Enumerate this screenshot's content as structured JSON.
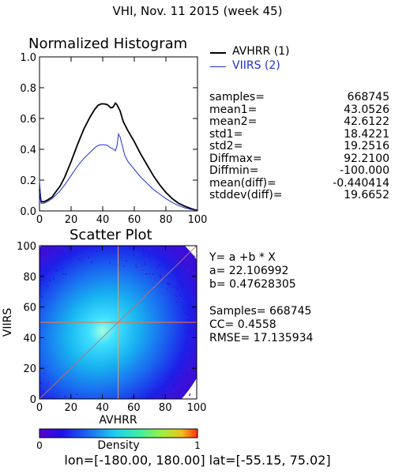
{
  "header": {
    "title": "VHI,  Nov. 11 2015 (week 45)"
  },
  "colors": {
    "avhrr": "#000000",
    "viirs": "#1f2fd0",
    "reference_line": "#c07070"
  },
  "chart_data": [
    {
      "type": "line",
      "title": "Normalized Histogram",
      "xlabel": "",
      "ylabel": "",
      "xlim": [
        0,
        100
      ],
      "ylim": [
        0,
        1.0
      ],
      "x_ticks": [
        "0",
        "20",
        "40",
        "60",
        "80",
        "100"
      ],
      "y_ticks": [
        "0.0",
        "0.2",
        "0.4",
        "0.6",
        "0.8",
        "1.0"
      ],
      "grid": false,
      "legend": "top-right",
      "series": [
        {
          "name": "AVHRR (1)",
          "color": "#000000",
          "x": [
            0,
            1,
            3,
            5,
            8,
            10,
            13,
            16,
            20,
            24,
            28,
            32,
            35,
            37,
            39,
            41,
            43,
            45,
            46,
            47,
            48,
            49,
            50,
            51,
            53,
            56,
            60,
            64,
            68,
            72,
            76,
            80,
            84,
            88,
            92,
            96,
            98,
            100
          ],
          "y": [
            0.14,
            0.06,
            0.06,
            0.07,
            0.09,
            0.12,
            0.16,
            0.22,
            0.32,
            0.43,
            0.53,
            0.61,
            0.66,
            0.685,
            0.695,
            0.695,
            0.69,
            0.67,
            0.67,
            0.68,
            0.7,
            0.69,
            0.67,
            0.65,
            0.58,
            0.52,
            0.45,
            0.37,
            0.3,
            0.23,
            0.17,
            0.12,
            0.08,
            0.05,
            0.03,
            0.015,
            0.008,
            0.005
          ]
        },
        {
          "name": "VIIRS (2)",
          "color": "#1f2fd0",
          "x": [
            0,
            1,
            3,
            5,
            8,
            10,
            13,
            16,
            20,
            24,
            28,
            32,
            35,
            37,
            39,
            41,
            43,
            45,
            47,
            48,
            49,
            50,
            51,
            52,
            53,
            54,
            56,
            60,
            64,
            68,
            72,
            76,
            80,
            84,
            88,
            92,
            96,
            98,
            100
          ],
          "y": [
            0.2,
            0.05,
            0.05,
            0.06,
            0.08,
            0.1,
            0.13,
            0.17,
            0.23,
            0.29,
            0.34,
            0.38,
            0.41,
            0.425,
            0.43,
            0.43,
            0.425,
            0.41,
            0.4,
            0.39,
            0.42,
            0.5,
            0.48,
            0.44,
            0.4,
            0.36,
            0.32,
            0.27,
            0.22,
            0.18,
            0.14,
            0.11,
            0.08,
            0.055,
            0.035,
            0.02,
            0.01,
            0.006,
            0.004
          ]
        }
      ]
    },
    {
      "type": "heatmap",
      "title": "Scatter Plot",
      "xlabel": "AVHRR",
      "ylabel": "VIIRS",
      "xlim": [
        0,
        100
      ],
      "ylim": [
        0,
        100
      ],
      "x_ticks": [
        "0",
        "20",
        "40",
        "60",
        "80",
        "100"
      ],
      "y_ticks": [
        "0",
        "20",
        "40",
        "60",
        "80",
        "100"
      ],
      "colorbar": {
        "label": "Density",
        "min_label": "0",
        "max_label": "1",
        "range": [
          0,
          1
        ]
      },
      "density_center": [
        40,
        40
      ],
      "reference_lines": {
        "x": 50,
        "y": 50,
        "one_to_one": true
      }
    }
  ],
  "legend": {
    "items": [
      {
        "label": "AVHRR (1)",
        "color": "#000000"
      },
      {
        "label": "VIIRS (2)",
        "color": "#1f2fd0"
      }
    ]
  },
  "stats": [
    {
      "label": "samples=",
      "value": "668745"
    },
    {
      "label": "mean1=",
      "value": "43.0526"
    },
    {
      "label": "mean2=",
      "value": "42.6122"
    },
    {
      "label": "std1=",
      "value": "18.4221"
    },
    {
      "label": "std2=",
      "value": "19.2516"
    },
    {
      "label": "Diffmax=",
      "value": "92.2100"
    },
    {
      "label": "Diffmin=",
      "value": "-100.000"
    },
    {
      "label": "mean(diff)=",
      "value": "-0.440414"
    },
    {
      "label": "stddev(diff)=",
      "value": "19.6652"
    }
  ],
  "regression": {
    "equation": "Y= a +b * X",
    "a_line": "a= 22.106992",
    "b_line": "b= 0.47628305",
    "samples_line": "Samples= 668745",
    "cc_line": "CC=  0.4558",
    "rmse_line": "RMSE= 17.135934"
  },
  "footer": {
    "lon_lat": "lon=[-180.00, 180.00] lat=[-55.15, 75.02]"
  }
}
